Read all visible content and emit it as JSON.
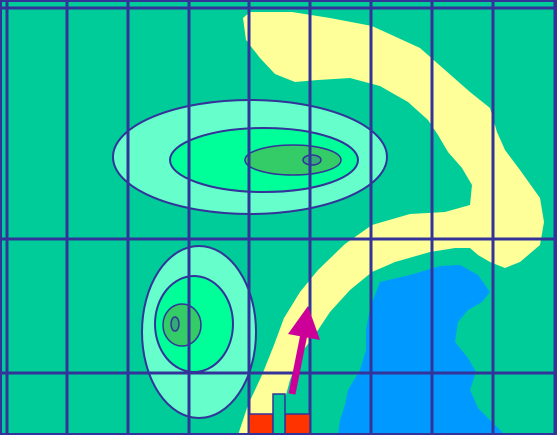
{
  "map": {
    "colors": {
      "background": "#00cc99",
      "road": "#ffff99",
      "water": "#0099ff",
      "grid_line": "#333399",
      "frame": "#333399",
      "hill_outer": "#66ffcc",
      "hill_middle": "#00ff99",
      "hill_inner": "#33cc66",
      "hill_peak": "#33aa77",
      "hill_outline": "#333399",
      "arrow": "#cc0099",
      "unit_base": "#ff3300",
      "unit_marker": "#00cc99",
      "unit_outline": "#333399"
    },
    "grid": {
      "columns": 9,
      "rows": 3
    },
    "hills": [
      {
        "name": "hill-north",
        "rings": 4
      },
      {
        "name": "hill-west",
        "rings": 4
      }
    ],
    "player": {
      "icon": "unit-marker-icon",
      "direction_icon": "direction-arrow-icon",
      "heading": "north-northeast"
    }
  }
}
